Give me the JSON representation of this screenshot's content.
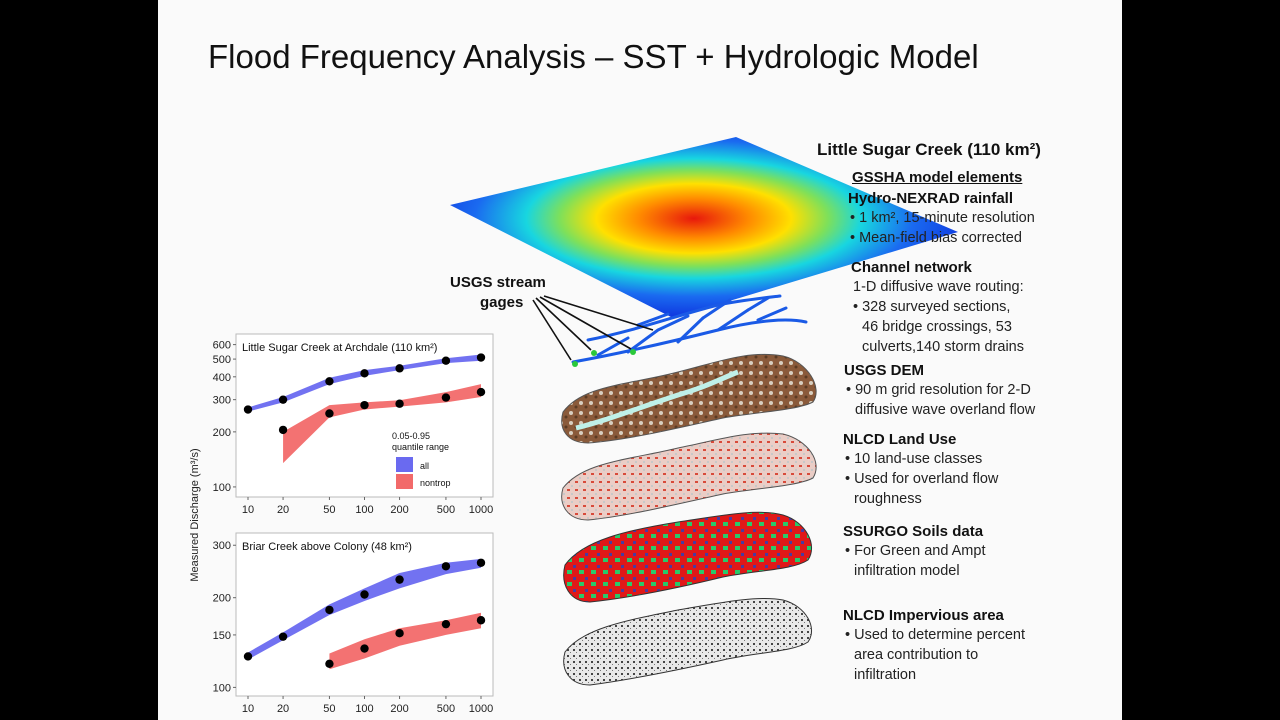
{
  "slide": {
    "title": "Flood Frequency Analysis – SST + Hydrologic Model"
  },
  "annotation": {
    "gages_label_1": "USGS stream",
    "gages_label_2": "gages"
  },
  "right_panel": {
    "watershed_title": "Little Sugar Creek (110 km²)",
    "model_elements": "GSSHA model elements",
    "sections": [
      {
        "heading": "Hydro-NEXRAD rainfall",
        "lines": [
          "• 1 km², 15-minute resolution",
          "• Mean-field bias corrected"
        ]
      },
      {
        "heading": "Channel network",
        "lines": [
          "1-D diffusive wave routing:",
          "• 328 surveyed sections,",
          "46 bridge crossings, 53",
          "culverts,140 storm drains"
        ]
      },
      {
        "heading": "USGS DEM",
        "lines": [
          "• 90 m grid resolution for 2-D",
          "diffusive wave overland flow"
        ]
      },
      {
        "heading": "NLCD Land Use",
        "lines": [
          "• 10 land-use classes",
          "• Used for overland flow",
          "roughness"
        ]
      },
      {
        "heading": "SSURGO Soils data",
        "lines": [
          "• For Green and Ampt",
          "infiltration model"
        ]
      },
      {
        "heading": "NLCD Impervious area",
        "lines": [
          "• Used to determine percent",
          "area contribution to",
          "infiltration"
        ]
      }
    ]
  },
  "colors": {
    "all_band": "#6a6af0",
    "nontrop_band": "#f26a6a"
  },
  "chart_data": [
    {
      "type": "area",
      "title": "Little Sugar Creek at Archdale (110 km²)",
      "ylabel": "Measured Discharge (m³/s)",
      "x": [
        10,
        20,
        50,
        100,
        200,
        500,
        1000
      ],
      "xscale": "log",
      "yscale": "log",
      "ylim": [
        95,
        620
      ],
      "yticks": [
        100,
        200,
        300,
        400,
        500,
        600
      ],
      "legend": {
        "title_1": "0.05-0.95",
        "title_2": "quantile range",
        "entries": [
          "all",
          "nontrop"
        ],
        "placement": "right"
      },
      "series": [
        {
          "name": "all",
          "band_low": [
            258,
            290,
            365,
            405,
            435,
            475,
            490
          ],
          "band_high": [
            272,
            310,
            395,
            435,
            460,
            505,
            530
          ],
          "points": [
            265,
            300,
            378,
            418,
            445,
            490,
            510
          ]
        },
        {
          "name": "nontrop",
          "band_x": [
            20,
            50,
            100,
            200,
            500,
            1000
          ],
          "band_low": [
            135,
            240,
            265,
            275,
            290,
            310
          ],
          "band_high": [
            200,
            280,
            290,
            298,
            330,
            365
          ],
          "points_x": [
            20,
            50,
            100,
            200,
            500,
            1000
          ],
          "points": [
            205,
            252,
            280,
            285,
            308,
            330
          ]
        }
      ]
    },
    {
      "type": "area",
      "title": "Briar Creek above Colony (48 km²)",
      "ylabel": "",
      "x": [
        10,
        20,
        50,
        100,
        200,
        500,
        1000
      ],
      "xscale": "log",
      "yscale": "log",
      "ylim": [
        98,
        310
      ],
      "yticks": [
        100,
        150,
        200,
        300
      ],
      "xticks": [
        10,
        20,
        50,
        100,
        200,
        500,
        1000
      ],
      "series": [
        {
          "name": "all",
          "band_low": [
            124,
            144,
            175,
            195,
            215,
            240,
            252
          ],
          "band_high": [
            131,
            153,
            190,
            215,
            242,
            262,
            270
          ],
          "points": [
            127,
            148,
            182,
            205,
            230,
            255,
            262
          ]
        },
        {
          "name": "nontrop",
          "band_x": [
            50,
            100,
            200,
            500,
            1000
          ],
          "band_low": [
            115,
            125,
            138,
            150,
            158
          ],
          "band_high": [
            130,
            145,
            158,
            168,
            178
          ],
          "points_x": [
            50,
            100,
            200,
            500,
            1000
          ],
          "points": [
            120,
            135,
            152,
            163,
            168
          ]
        }
      ]
    }
  ]
}
